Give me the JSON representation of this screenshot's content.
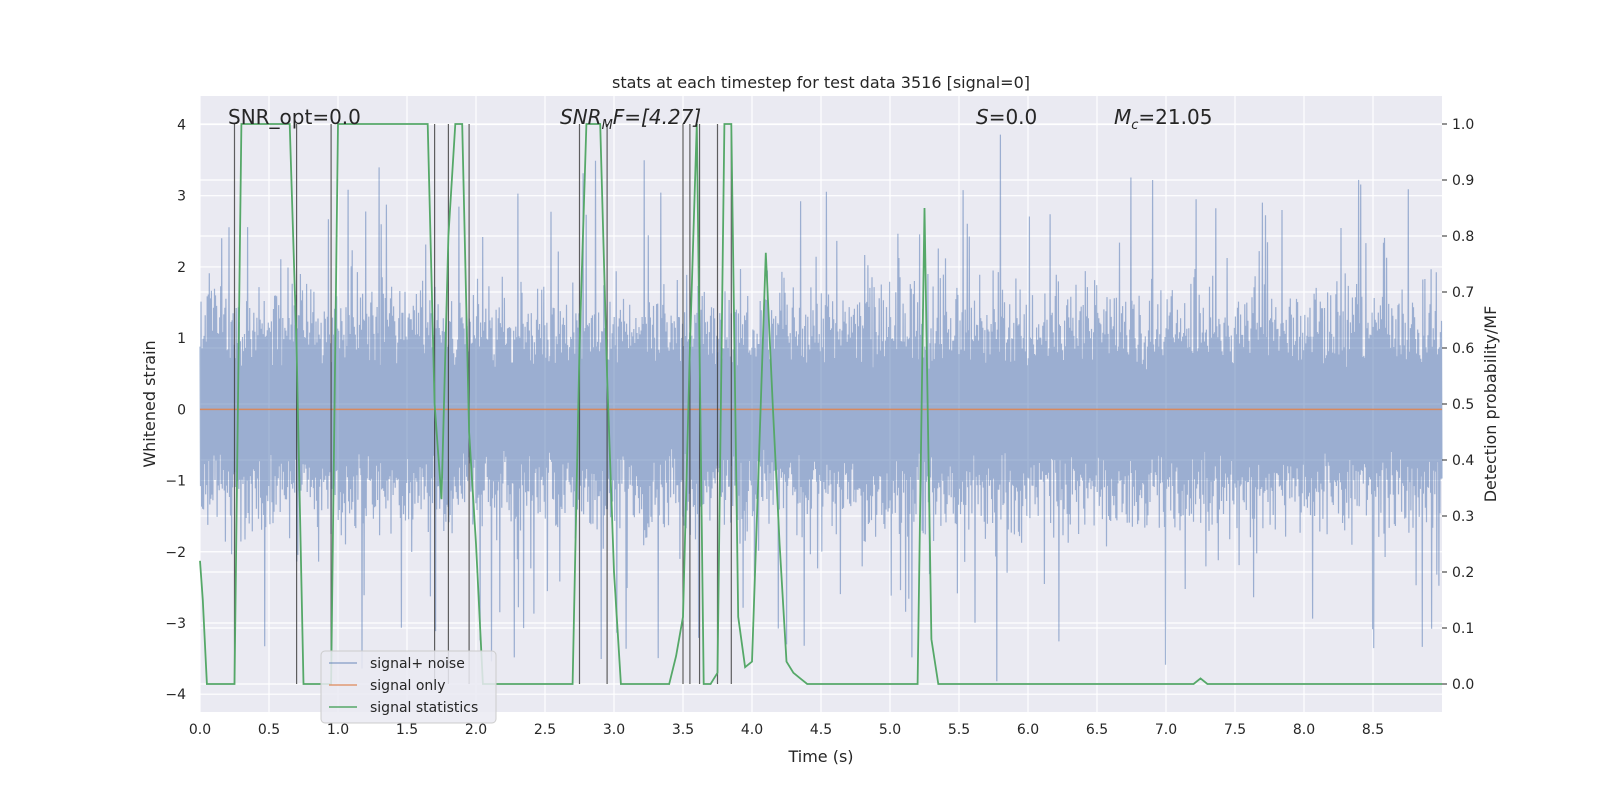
{
  "chart_data": {
    "type": "line",
    "title": "stats at each timestep for test data 3516 [signal=0]",
    "xlabel": "Time (s)",
    "ylabel": "Whitened strain",
    "y2label": "Detection probability/MF",
    "xlim": [
      0.0,
      9.0
    ],
    "ylim": [
      -4.25,
      4.4
    ],
    "y2lim": [
      -0.05,
      1.05
    ],
    "x_ticks": [
      0.0,
      0.5,
      1.0,
      1.5,
      2.0,
      2.5,
      3.0,
      3.5,
      4.0,
      4.5,
      5.0,
      5.5,
      6.0,
      6.5,
      7.0,
      7.5,
      8.0,
      8.5
    ],
    "x_tick_labels": [
      "0.0",
      "0.5",
      "1.0",
      "1.5",
      "2.0",
      "2.5",
      "3.0",
      "3.5",
      "4.0",
      "4.5",
      "5.0",
      "5.5",
      "6.0",
      "6.5",
      "7.0",
      "7.5",
      "8.0",
      "8.5"
    ],
    "y_ticks": [
      4,
      3,
      2,
      1,
      0,
      -1,
      -2,
      -3,
      -4
    ],
    "y_tick_labels": [
      "4",
      "3",
      "2",
      "1",
      "0",
      "−1",
      "−2",
      "−3",
      "−4"
    ],
    "y2_ticks": [
      1.0,
      0.9,
      0.8,
      0.7,
      0.6,
      0.5,
      0.4,
      0.3,
      0.2,
      0.1,
      0.0
    ],
    "y2_tick_labels": [
      "1.0",
      "0.9",
      "0.8",
      "0.7",
      "0.6",
      "0.5",
      "0.4",
      "0.3",
      "0.2",
      "0.1",
      "0.0"
    ],
    "grid": true,
    "legend_position": "lower-left",
    "annotations": {
      "snr_opt": "SNR_opt=0.0",
      "snr_mf_main": "SNR",
      "snr_mf_sub": "M",
      "snr_mf_rest": "F=[4.27]",
      "s_var": "S",
      "s_rest": "=0.0",
      "mc_main": "M",
      "mc_sub": "c",
      "mc_rest": "=21.05"
    },
    "series": [
      {
        "name": "signal+ noise",
        "color": "#4c72b0",
        "style": "dense noise, approx. amplitude range -3.9 to 3.9, sampled over 0-9 s",
        "envelope": {
          "typical_max": 2.0,
          "typical_min": -2.0,
          "peak_max": 3.9,
          "peak_min": -3.9
        }
      },
      {
        "name": "signal only",
        "color": "#dd8452",
        "values_note": "flat at 0 over full time range",
        "x": [
          0.0,
          9.0
        ],
        "y": [
          0.0,
          0.0
        ]
      },
      {
        "name": "signal statistics",
        "color": "#55a868",
        "axis": "right",
        "x": [
          0.0,
          0.02,
          0.05,
          0.1,
          0.15,
          0.2,
          0.25,
          0.3,
          0.35,
          0.4,
          0.45,
          0.5,
          0.55,
          0.6,
          0.65,
          0.7,
          0.75,
          0.8,
          0.85,
          0.9,
          0.95,
          1.0,
          1.05,
          1.1,
          1.15,
          1.2,
          1.25,
          1.3,
          1.35,
          1.4,
          1.45,
          1.5,
          1.55,
          1.6,
          1.65,
          1.7,
          1.75,
          1.8,
          1.85,
          1.9,
          1.95,
          2.0,
          2.05,
          2.1,
          2.15,
          2.2,
          2.25,
          2.3,
          2.35,
          2.4,
          2.45,
          2.5,
          2.55,
          2.6,
          2.65,
          2.7,
          2.75,
          2.8,
          2.85,
          2.9,
          2.95,
          3.0,
          3.05,
          3.1,
          3.15,
          3.2,
          3.25,
          3.3,
          3.35,
          3.4,
          3.45,
          3.5,
          3.55,
          3.6,
          3.65,
          3.7,
          3.75,
          3.8,
          3.85,
          3.9,
          3.95,
          4.0,
          4.05,
          4.1,
          4.15,
          4.2,
          4.25,
          4.3,
          4.35,
          4.4,
          4.45,
          4.5,
          4.55,
          4.6,
          4.65,
          4.7,
          4.75,
          4.8,
          4.85,
          4.9,
          4.95,
          5.0,
          5.05,
          5.1,
          5.15,
          5.2,
          5.25,
          5.3,
          5.35,
          5.4,
          5.45,
          5.5,
          7.2,
          7.25,
          7.3,
          7.35,
          7.4,
          9.0
        ],
        "y": [
          0.22,
          0.15,
          0.0,
          0.0,
          0.0,
          0.0,
          0.0,
          1.0,
          1.0,
          1.0,
          1.0,
          1.0,
          1.0,
          1.0,
          1.0,
          0.6,
          0.0,
          0.0,
          0.0,
          0.0,
          0.0,
          1.0,
          1.0,
          1.0,
          1.0,
          1.0,
          1.0,
          1.0,
          1.0,
          1.0,
          1.0,
          1.0,
          1.0,
          1.0,
          1.0,
          0.5,
          0.33,
          0.8,
          1.0,
          1.0,
          0.45,
          0.25,
          0.0,
          0.0,
          0.0,
          0.0,
          0.0,
          0.0,
          0.0,
          0.0,
          0.0,
          0.0,
          0.0,
          0.0,
          0.0,
          0.0,
          0.6,
          1.0,
          1.0,
          1.0,
          0.55,
          0.2,
          0.0,
          0.0,
          0.0,
          0.0,
          0.0,
          0.0,
          0.0,
          0.0,
          0.05,
          0.12,
          0.6,
          1.0,
          0.0,
          0.0,
          0.02,
          1.0,
          1.0,
          0.12,
          0.03,
          0.04,
          0.4,
          0.77,
          0.5,
          0.25,
          0.04,
          0.02,
          0.01,
          0.0,
          0.0,
          0.0,
          0.0,
          0.0,
          0.0,
          0.0,
          0.0,
          0.0,
          0.0,
          0.0,
          0.0,
          0.0,
          0.0,
          0.0,
          0.0,
          0.0,
          0.85,
          0.08,
          0.0,
          0.0,
          0.0,
          0.0,
          0.0,
          0.01,
          0.0,
          0.0,
          0.0,
          0.0
        ]
      }
    ],
    "vertical_markers_x": [
      0.25,
      0.7,
      0.95,
      1.7,
      1.8,
      1.95,
      2.75,
      2.95,
      3.5,
      3.55,
      3.62,
      3.75,
      3.85
    ]
  }
}
